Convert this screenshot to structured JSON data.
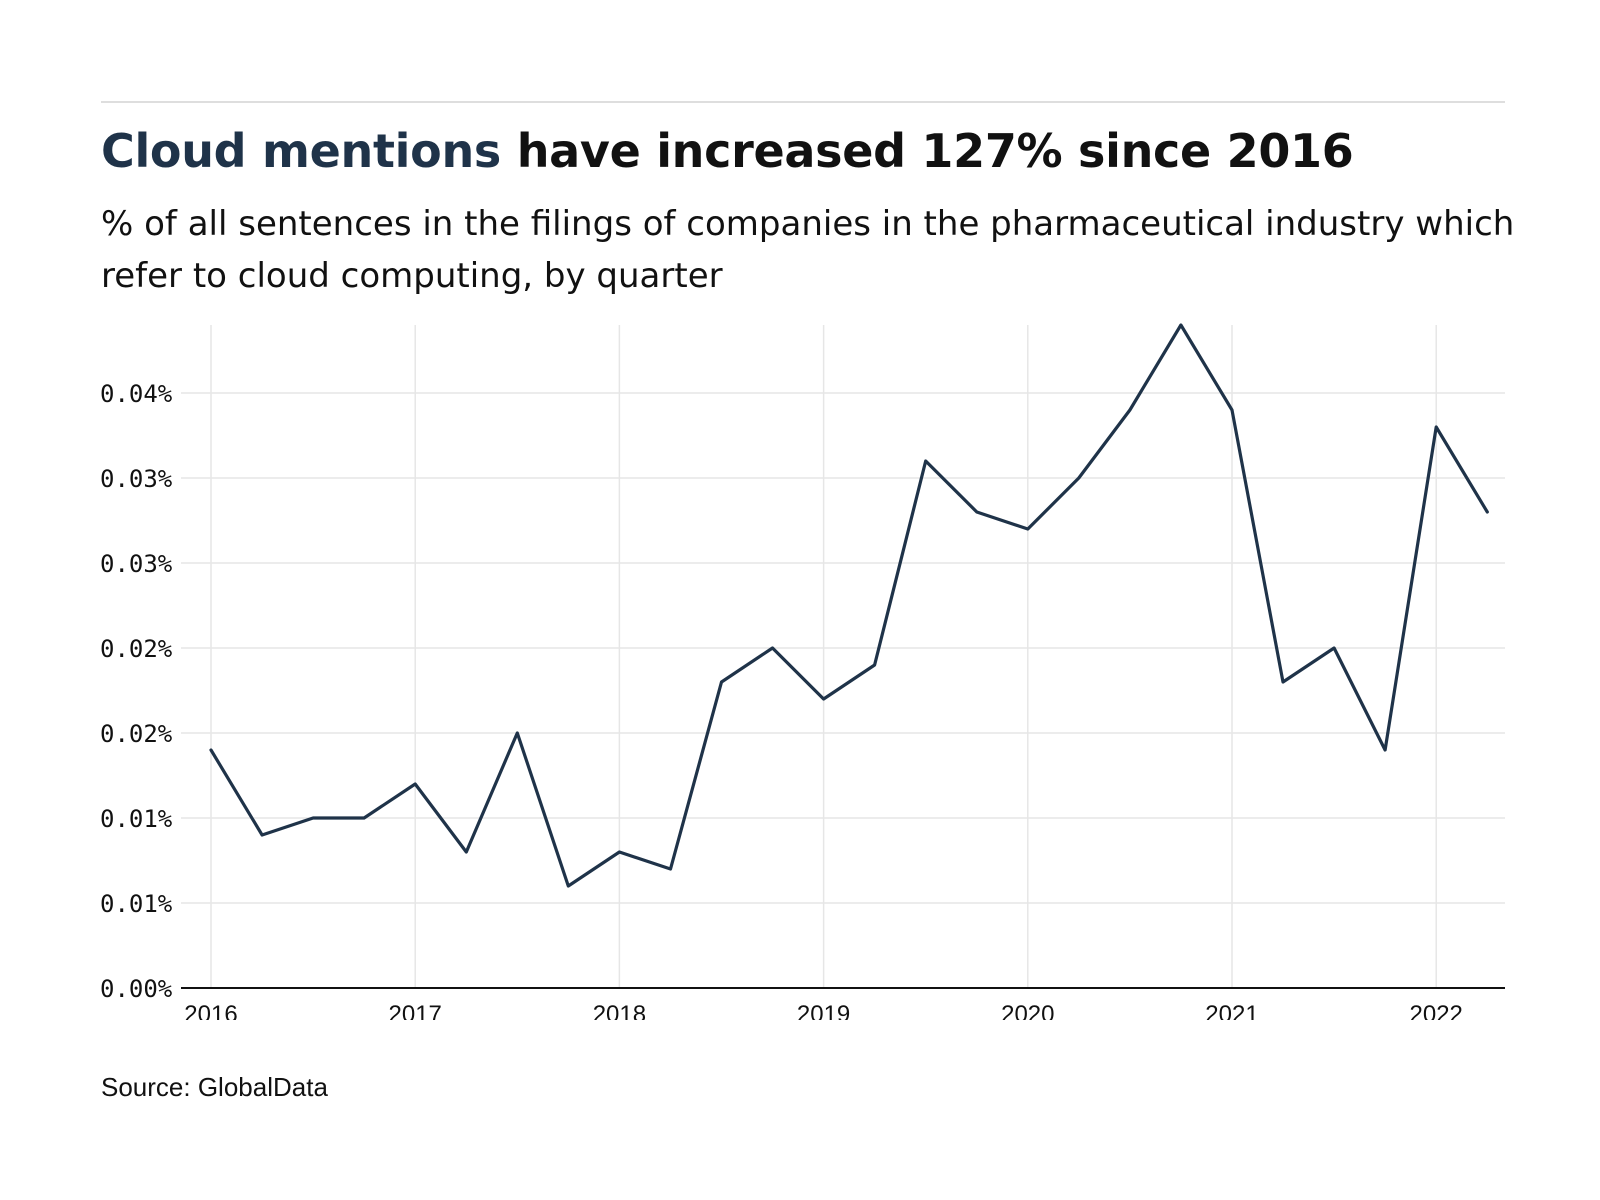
{
  "header": {
    "title_highlight": "Cloud mentions",
    "title_rest": " have increased 127% since 2016",
    "subtitle": "% of all sentences in the filings of companies in the pharmaceutical industry which refer to cloud computing, by quarter"
  },
  "footer": {
    "source": "Source: GlobalData"
  },
  "colors": {
    "line": "#1f3349",
    "title_highlight": "#1f3349",
    "grid": "#e6e6e6",
    "axis": "#111111"
  },
  "chart_data": {
    "type": "line",
    "title": "Cloud mentions have increased 127% since 2016",
    "subtitle": "% of all sentences in the filings of companies in the pharmaceutical industry which refer to cloud computing, by quarter",
    "xlabel": "",
    "ylabel": "",
    "x": [
      "2016-Q1",
      "2016-Q2",
      "2016-Q3",
      "2016-Q4",
      "2017-Q1",
      "2017-Q2",
      "2017-Q3",
      "2017-Q4",
      "2018-Q1",
      "2018-Q2",
      "2018-Q3",
      "2018-Q4",
      "2019-Q1",
      "2019-Q2",
      "2019-Q3",
      "2019-Q4",
      "2020-Q1",
      "2020-Q2",
      "2020-Q3",
      "2020-Q4",
      "2021-Q1",
      "2021-Q2",
      "2021-Q3",
      "2021-Q4",
      "2022-Q1",
      "2022-Q2"
    ],
    "series": [
      {
        "values": [
          0.014,
          0.009,
          0.01,
          0.01,
          0.012,
          0.008,
          0.015,
          0.006,
          0.008,
          0.007,
          0.018,
          0.02,
          0.017,
          0.019,
          0.031,
          0.028,
          0.027,
          0.03,
          0.034,
          0.039,
          0.034,
          0.018,
          0.02,
          0.014,
          0.033,
          0.028
        ]
      }
    ],
    "x_ticks": [
      "2016",
      "2017",
      "2018",
      "2019",
      "2020",
      "2021",
      "2022"
    ],
    "y_ticks": [
      {
        "value": 0.0,
        "label": "0.00%"
      },
      {
        "value": 0.005,
        "label": "0.01%"
      },
      {
        "value": 0.01,
        "label": "0.01%"
      },
      {
        "value": 0.015,
        "label": "0.02%"
      },
      {
        "value": 0.02,
        "label": "0.02%"
      },
      {
        "value": 0.025,
        "label": "0.03%"
      },
      {
        "value": 0.03,
        "label": "0.03%"
      },
      {
        "value": 0.035,
        "label": "0.04%"
      }
    ],
    "ylim": [
      0,
      0.039
    ],
    "grid": true,
    "legend": "none"
  }
}
